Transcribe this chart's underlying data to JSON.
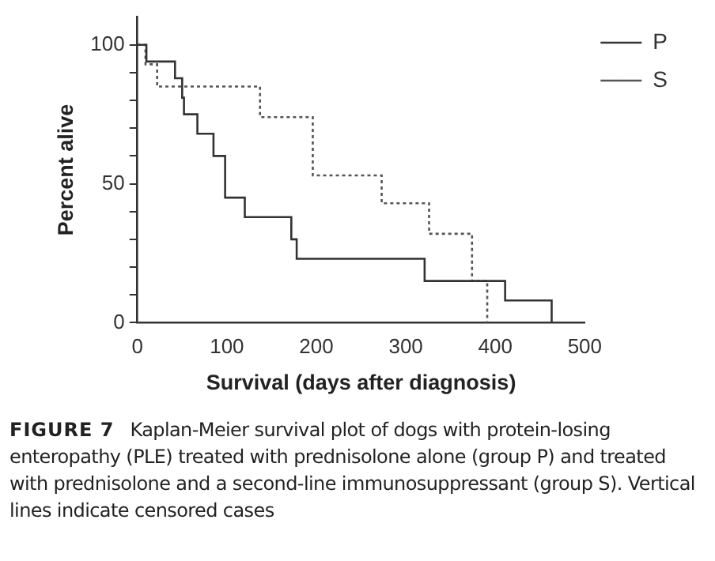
{
  "chart_data": {
    "type": "step",
    "title": "FIGURE 7",
    "xlabel": "Survival (days after diagnosis)",
    "ylabel": "Percent alive",
    "annotations": [
      "Kaplan-Meier survival plot of dogs with protein-losing enteropathy (PLE) treated with prednisolone alone (group P) and treated with prednisolone and a second-line immunosuppressant (group S). Vertical lines indicate censored cases"
    ],
    "series": [
      {
        "name": "P",
        "color": "#333333",
        "line_style": "solid",
        "x": [
          0,
          10,
          42,
          50,
          52,
          67,
          85,
          98,
          120,
          172,
          178,
          321,
          411,
          463
        ],
        "values": [
          100,
          94,
          88,
          81,
          75,
          68,
          60,
          45,
          38,
          30,
          23,
          15,
          8,
          0
        ]
      },
      {
        "name": "S",
        "color": "#555555",
        "line_style": "dotted",
        "x": [
          0,
          9,
          22,
          137,
          196,
          273,
          326,
          374,
          391
        ],
        "values": [
          100,
          93,
          85,
          74,
          53,
          43,
          32,
          15,
          0
        ]
      }
    ],
    "xlim": [
      0,
      500
    ],
    "xticks": [
      0,
      100,
      200,
      300,
      400,
      500
    ],
    "ylim": [
      0,
      110
    ],
    "yticks": [
      0,
      {
        "value": 10,
        "label": null
      },
      {
        "value": 20,
        "label": null
      },
      {
        "value": 30,
        "label": null
      },
      {
        "value": 40,
        "label": null
      },
      50,
      {
        "value": 60,
        "label": null
      },
      {
        "value": 70,
        "label": null
      },
      {
        "value": 80,
        "label": null
      },
      {
        "value": 90,
        "label": null
      },
      100
    ],
    "grid": false,
    "legend": "top right"
  }
}
